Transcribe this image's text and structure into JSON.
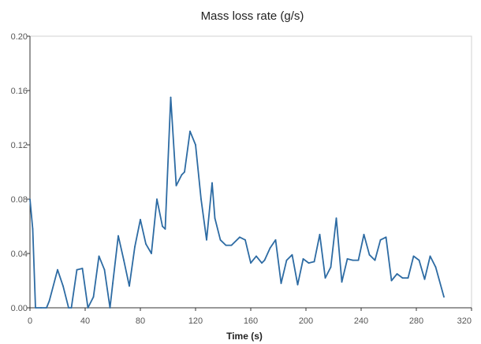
{
  "chart_data": {
    "type": "line",
    "title": "Mass loss rate (g/s)",
    "xlabel": "Time (s)",
    "ylabel": "",
    "xlim": [
      0,
      320
    ],
    "ylim": [
      0,
      0.2
    ],
    "x_ticks": [
      "0",
      "40",
      "80",
      "120",
      "160",
      "200",
      "240",
      "280",
      "320"
    ],
    "y_ticks": [
      "0.00",
      "0.04",
      "0.08",
      "0.12",
      "0.16",
      "0.20"
    ],
    "grid": false,
    "colors": {
      "line": "#2d6ba3"
    },
    "series": [
      {
        "x": [
          0,
          2,
          4,
          8,
          12,
          14,
          20,
          24,
          28,
          30,
          34,
          38,
          42,
          46,
          50,
          54,
          58,
          60,
          64,
          68,
          72,
          76,
          80,
          84,
          88,
          92,
          96,
          98,
          102,
          106,
          110,
          112,
          116,
          120,
          124,
          128,
          132,
          134,
          138,
          142,
          146,
          152,
          156,
          160,
          164,
          168,
          170,
          174,
          178,
          182,
          186,
          190,
          194,
          198,
          202,
          206,
          210,
          214,
          218,
          222,
          226,
          230,
          234,
          238,
          242,
          246,
          250,
          254,
          258,
          262,
          266,
          270,
          274,
          278,
          282,
          286,
          290,
          294,
          300
        ],
        "y": [
          0.08,
          0.058,
          0,
          0,
          0,
          0.005,
          0.028,
          0.016,
          0,
          0,
          0.028,
          0.029,
          0,
          0.008,
          0.038,
          0.028,
          0,
          0.018,
          0.053,
          0.035,
          0.016,
          0.045,
          0.065,
          0.047,
          0.04,
          0.08,
          0.06,
          0.058,
          0.155,
          0.09,
          0.098,
          0.1,
          0.13,
          0.12,
          0.08,
          0.05,
          0.092,
          0.066,
          0.05,
          0.046,
          0.046,
          0.052,
          0.05,
          0.033,
          0.038,
          0.033,
          0.035,
          0.044,
          0.05,
          0.018,
          0.035,
          0.039,
          0.017,
          0.036,
          0.033,
          0.034,
          0.054,
          0.022,
          0.03,
          0.066,
          0.019,
          0.036,
          0.035,
          0.035,
          0.054,
          0.039,
          0.035,
          0.05,
          0.052,
          0.02,
          0.025,
          0.022,
          0.022,
          0.038,
          0.035,
          0.021,
          0.038,
          0.03,
          0.008
        ]
      }
    ]
  }
}
